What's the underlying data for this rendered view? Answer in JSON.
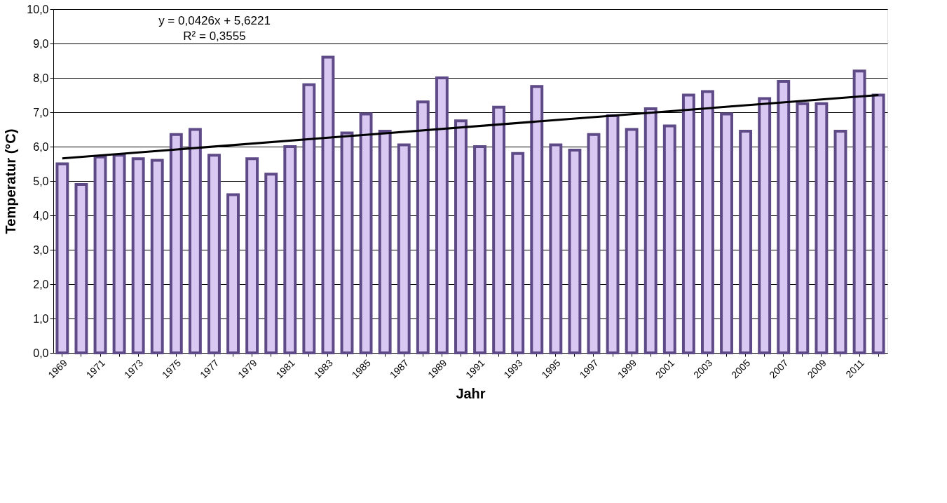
{
  "chart_data": {
    "type": "bar",
    "xlabel": "Jahr",
    "ylabel": "Temperatur (°C)",
    "categories": [
      "1969",
      null,
      "1971",
      null,
      "1973",
      null,
      "1975",
      null,
      "1977",
      null,
      "1979",
      null,
      "1981",
      null,
      "1983",
      null,
      "1985",
      null,
      "1987",
      null,
      "1989",
      null,
      "1991",
      null,
      "1993",
      null,
      "1995",
      null,
      "1997",
      null,
      "1999",
      null,
      "2001",
      null,
      "2003",
      null,
      "2005",
      null,
      "2007",
      null,
      "2009",
      null,
      "2011",
      null
    ],
    "series": [
      {
        "color": "#5e4a87",
        "values": [
          5.5,
          4.9,
          5.7,
          5.75,
          5.65,
          5.6,
          6.35,
          6.5,
          5.75,
          4.6,
          5.65,
          5.2,
          6.0,
          7.8,
          8.6,
          6.4,
          6.95,
          6.45,
          6.05,
          7.3,
          8.0,
          6.75,
          6.0,
          7.15,
          5.8,
          7.75,
          6.05,
          5.9,
          6.35,
          6.9,
          6.5,
          7.1,
          6.6,
          7.5,
          7.6,
          6.95,
          6.45,
          7.4,
          7.9,
          7.25,
          7.25,
          6.45,
          8.2,
          7.5
        ]
      },
      {
        "type": "line",
        "color": "#000000",
        "values": [
          5.66,
          null,
          null,
          null,
          null,
          null,
          null,
          null,
          null,
          null,
          null,
          null,
          null,
          null,
          null,
          null,
          null,
          null,
          null,
          null,
          null,
          null,
          null,
          null,
          null,
          null,
          null,
          null,
          null,
          null,
          null,
          null,
          null,
          null,
          null,
          null,
          null,
          null,
          null,
          null,
          null,
          null,
          null,
          7.5
        ]
      }
    ],
    "ylim": [
      0,
      10
    ],
    "yticks": [
      {
        "value": 0,
        "label": "0,0"
      },
      {
        "value": 1,
        "label": "1,0"
      },
      {
        "value": 2,
        "label": "2,0"
      },
      {
        "value": 3,
        "label": "3,0"
      },
      {
        "value": 4,
        "label": "4,0"
      },
      {
        "value": 5,
        "label": "5,0"
      },
      {
        "value": 6,
        "label": "6,0"
      },
      {
        "value": 7,
        "label": "7,0"
      },
      {
        "value": 8,
        "label": "8,0"
      },
      {
        "value": 9,
        "label": "9,0"
      },
      {
        "value": 10,
        "label": "10,0"
      }
    ],
    "grid": "y",
    "annotations": [
      "y = 0,0426x + 5,6221",
      "R² = 0,3555"
    ]
  }
}
